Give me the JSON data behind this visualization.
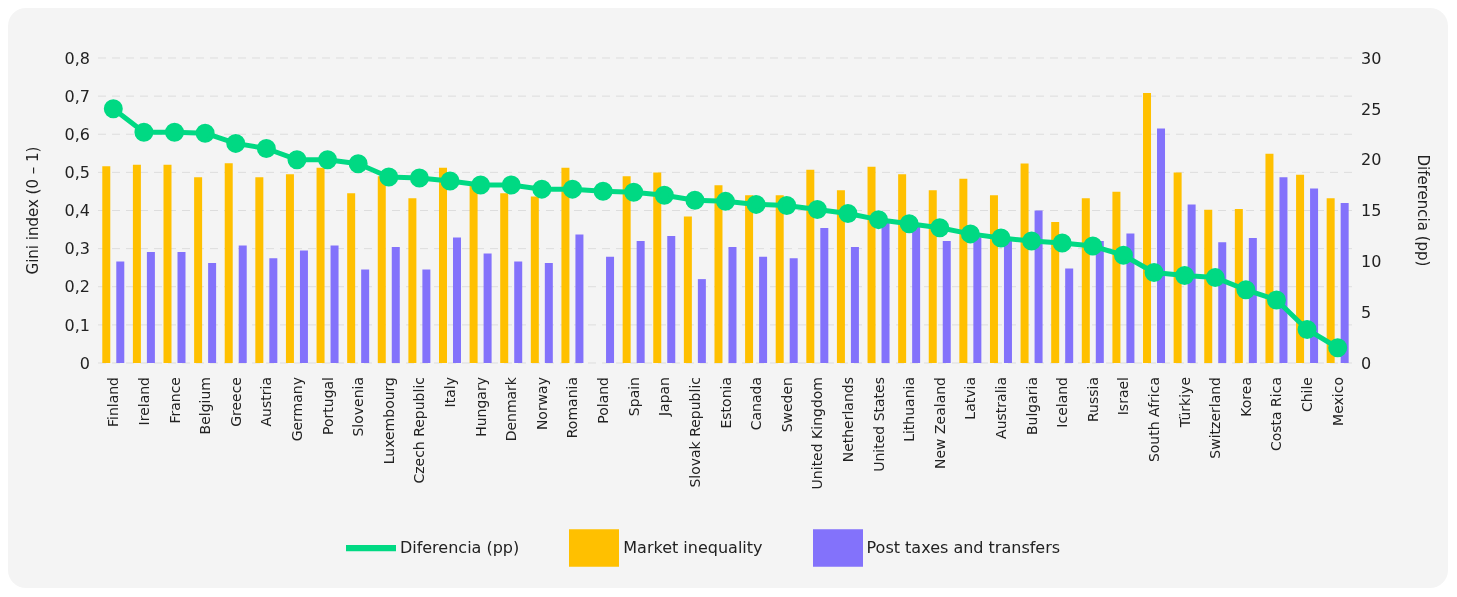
{
  "chart_data": {
    "type": "bar",
    "ylabel": "Gini index (0 – 1)",
    "y2label": "Diferencia (pp)",
    "categories": [
      "Finland",
      "Ireland",
      "France",
      "Belgium",
      "Greece",
      "Austria",
      "Germany",
      "Portugal",
      "Slovenia",
      "Luxembourg",
      "Czech Republic",
      "Italy",
      "Hungary",
      "Denmark",
      "Norway",
      "Romania",
      "Poland",
      "Spain",
      "Japan",
      "Slovak Republic",
      "Estonia",
      "Canada",
      "Sweden",
      "United Kingdom",
      "Netherlands",
      "United States",
      "Lithuania",
      "New Zealand",
      "Latvia",
      "Australia",
      "Bulgaria",
      "Iceland",
      "Russia",
      "Israel",
      "South Africa",
      "Türkiye",
      "Switzerland",
      "Korea",
      "Costa Rica",
      "Chile",
      "Mexico"
    ],
    "series": [
      {
        "name": "Market inequality",
        "color": "#ffc000",
        "values": [
          0.516,
          0.52,
          0.52,
          0.487,
          0.524,
          0.487,
          0.495,
          0.512,
          0.445,
          0.49,
          0.432,
          0.512,
          0.47,
          0.445,
          0.437,
          0.512,
          null,
          0.49,
          0.5,
          0.384,
          0.466,
          0.44,
          0.44,
          0.507,
          0.453,
          0.515,
          0.495,
          0.453,
          0.483,
          0.44,
          0.523,
          0.37,
          0.432,
          0.449,
          0.708,
          0.5,
          0.402,
          0.404,
          0.549,
          0.494,
          0.432
        ]
      },
      {
        "name": "Post taxes and transfers",
        "color": "#8372fb",
        "values": [
          0.266,
          0.291,
          0.291,
          0.262,
          0.308,
          0.275,
          0.295,
          0.308,
          0.245,
          0.304,
          0.245,
          0.329,
          0.287,
          0.266,
          0.262,
          0.337,
          0.279,
          0.32,
          0.333,
          0.22,
          0.304,
          0.279,
          0.275,
          0.354,
          0.304,
          0.37,
          0.36,
          0.32,
          0.33,
          0.32,
          0.4,
          0.248,
          0.32,
          0.34,
          0.615,
          0.416,
          0.317,
          0.328,
          0.487,
          0.458,
          0.42
        ]
      },
      {
        "name": "Diferencia (pp)",
        "type": "line",
        "axis": "y2",
        "color": "#00d983",
        "values": [
          25.0,
          22.7,
          22.7,
          22.6,
          21.6,
          21.1,
          20.0,
          20.0,
          19.6,
          18.3,
          18.2,
          17.9,
          17.5,
          17.5,
          17.1,
          17.1,
          16.9,
          16.8,
          16.5,
          16.0,
          15.9,
          15.6,
          15.5,
          15.1,
          14.7,
          14.1,
          13.7,
          13.3,
          12.7,
          12.3,
          12.0,
          11.8,
          11.5,
          10.6,
          8.9,
          8.6,
          8.4,
          7.2,
          6.2,
          3.3,
          1.5
        ]
      }
    ],
    "ylim": [
      0,
      0.8
    ],
    "yticks": [
      {
        "value": 0,
        "label": "0"
      },
      {
        "value": 0.1,
        "label": "0,1"
      },
      {
        "value": 0.2,
        "label": "0,2"
      },
      {
        "value": 0.3,
        "label": "0,3"
      },
      {
        "value": 0.4,
        "label": "0,4"
      },
      {
        "value": 0.5,
        "label": "0,5"
      },
      {
        "value": 0.6,
        "label": "0,6"
      },
      {
        "value": 0.7,
        "label": "0,7"
      },
      {
        "value": 0.8,
        "label": "0,8"
      }
    ],
    "y2lim": [
      0,
      30
    ],
    "y2ticks": [
      0,
      5,
      10,
      15,
      20,
      25,
      30
    ],
    "grid": "y",
    "legend": "bottom",
    "marker": "circle",
    "line_style": "solid"
  }
}
